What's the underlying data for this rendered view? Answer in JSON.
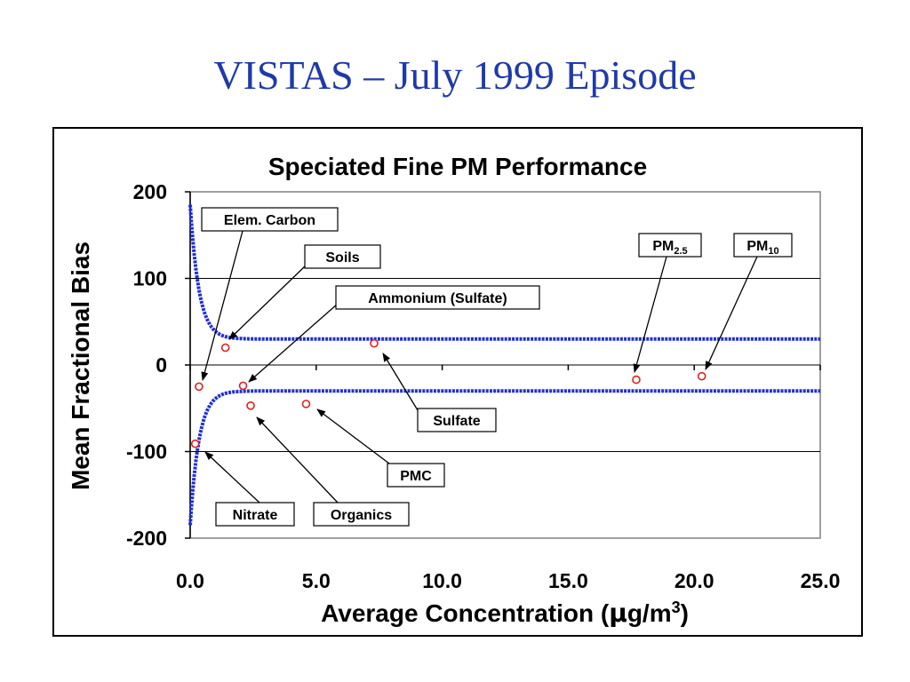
{
  "slide": {
    "title": "VISTAS – July 1999 Episode"
  },
  "colors": {
    "title": "#1f3aa8",
    "curve": "#1f2fd6",
    "point": "#e0201b"
  },
  "chart_data": {
    "type": "scatter",
    "title": "Speciated Fine PM Performance",
    "xlabel": "Average Concentration (μg/m3)",
    "xlabel_parts": {
      "main": "Average Concentration (",
      "mu": "μ",
      "unit": "g/m",
      "sup": "3",
      "close": ")"
    },
    "ylabel": "Mean Fractional Bias",
    "xlim": [
      0,
      25
    ],
    "ylim": [
      -200,
      200
    ],
    "x_ticks": [
      "0.0",
      "5.0",
      "10.0",
      "15.0",
      "20.0",
      "25.0"
    ],
    "x_tick_values": [
      0,
      5,
      10,
      15,
      20,
      25
    ],
    "y_ticks": [
      "200",
      "100",
      "0",
      "-100",
      "-200"
    ],
    "y_tick_values": [
      200,
      100,
      0,
      -100,
      -200
    ],
    "grid": "horizontal",
    "points": [
      {
        "name": "Elem. Carbon",
        "x": 0.35,
        "y": -25
      },
      {
        "name": "Soils",
        "x": 1.4,
        "y": 20
      },
      {
        "name": "Ammonium (Sulfate)",
        "x": 2.1,
        "y": -24
      },
      {
        "name": "Sulfate",
        "x": 7.3,
        "y": 25
      },
      {
        "name": "PM2.5",
        "x": 17.7,
        "y": -17
      },
      {
        "name": "PM10",
        "x": 20.3,
        "y": -13
      },
      {
        "name": "Nitrate",
        "x": 0.2,
        "y": -91
      },
      {
        "name": "Organics",
        "x": 2.4,
        "y": -47
      },
      {
        "name": "PMC",
        "x": 4.6,
        "y": -45
      }
    ],
    "labels": [
      {
        "text": "Elem. Carbon"
      },
      {
        "text": "Soils"
      },
      {
        "text": "Ammonium (Sulfate)"
      },
      {
        "text": "Sulfate"
      },
      {
        "text": "PM",
        "sub": "2.5"
      },
      {
        "text": "PM",
        "sub": "10"
      },
      {
        "text": "Nitrate"
      },
      {
        "text": "Organics"
      },
      {
        "text": "PMC"
      }
    ]
  }
}
